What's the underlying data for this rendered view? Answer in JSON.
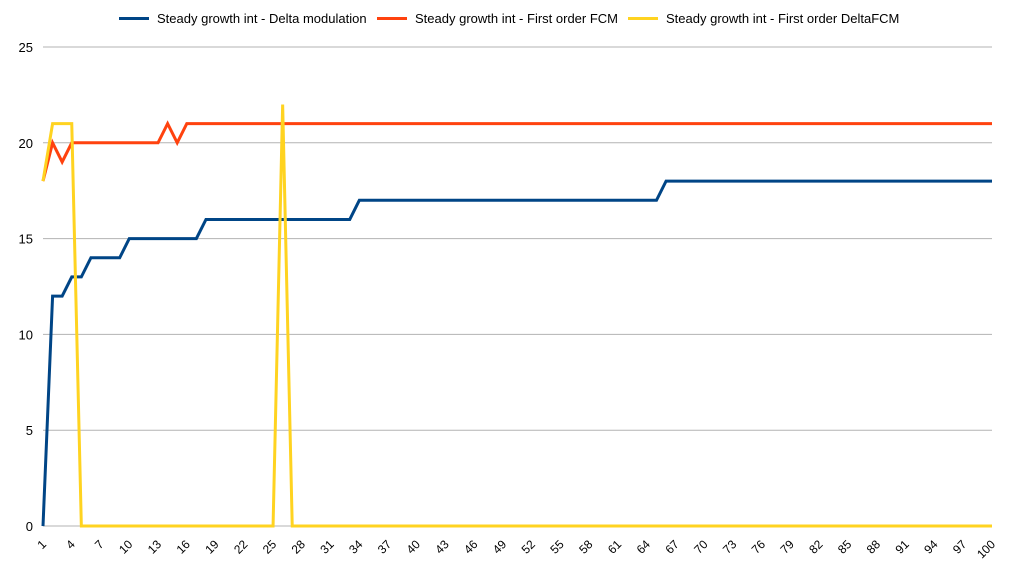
{
  "chart_data": {
    "type": "line",
    "title": "",
    "xlabel": "",
    "ylabel": "",
    "ylim": [
      0,
      25
    ],
    "yticks": [
      0,
      5,
      10,
      15,
      20,
      25
    ],
    "x_tick_labels": [
      "1",
      "4",
      "7",
      "10",
      "13",
      "16",
      "19",
      "22",
      "25",
      "28",
      "31",
      "34",
      "37",
      "40",
      "43",
      "46",
      "49",
      "52",
      "55",
      "58",
      "61",
      "64",
      "67",
      "70",
      "73",
      "76",
      "79",
      "82",
      "85",
      "88",
      "91",
      "94",
      "97",
      "100"
    ],
    "grid": "horizontal",
    "legend_position": "top",
    "series": [
      {
        "name": "Steady growth int - Delta modulation",
        "color": "#004586",
        "values": [
          0,
          12,
          12,
          13,
          13,
          14,
          14,
          14,
          14,
          15,
          15,
          15,
          15,
          15,
          15,
          15,
          15,
          16,
          16,
          16,
          16,
          16,
          16,
          16,
          16,
          16,
          16,
          16,
          16,
          16,
          16,
          16,
          16,
          17,
          17,
          17,
          17,
          17,
          17,
          17,
          17,
          17,
          17,
          17,
          17,
          17,
          17,
          17,
          17,
          17,
          17,
          17,
          17,
          17,
          17,
          17,
          17,
          17,
          17,
          17,
          17,
          17,
          17,
          17,
          17,
          18,
          18,
          18,
          18,
          18,
          18,
          18,
          18,
          18,
          18,
          18,
          18,
          18,
          18,
          18,
          18,
          18,
          18,
          18,
          18,
          18,
          18,
          18,
          18,
          18,
          18,
          18,
          18,
          18,
          18,
          18,
          18,
          18,
          18,
          18
        ]
      },
      {
        "name": "Steady growth int - First order FCM",
        "color": "#ff420e",
        "values": [
          18,
          20,
          19,
          20,
          20,
          20,
          20,
          20,
          20,
          20,
          20,
          20,
          20,
          21,
          20,
          21,
          21,
          21,
          21,
          21,
          21,
          21,
          21,
          21,
          21,
          21,
          21,
          21,
          21,
          21,
          21,
          21,
          21,
          21,
          21,
          21,
          21,
          21,
          21,
          21,
          21,
          21,
          21,
          21,
          21,
          21,
          21,
          21,
          21,
          21,
          21,
          21,
          21,
          21,
          21,
          21,
          21,
          21,
          21,
          21,
          21,
          21,
          21,
          21,
          21,
          21,
          21,
          21,
          21,
          21,
          21,
          21,
          21,
          21,
          21,
          21,
          21,
          21,
          21,
          21,
          21,
          21,
          21,
          21,
          21,
          21,
          21,
          21,
          21,
          21,
          21,
          21,
          21,
          21,
          21,
          21,
          21,
          21,
          21,
          21
        ]
      },
      {
        "name": "Steady growth int - First order DeltaFCM",
        "color": "#ffd320",
        "values": [
          18,
          21,
          21,
          21,
          0,
          0,
          0,
          0,
          0,
          0,
          0,
          0,
          0,
          0,
          0,
          0,
          0,
          0,
          0,
          0,
          0,
          0,
          0,
          0,
          0,
          22,
          0,
          0,
          0,
          0,
          0,
          0,
          0,
          0,
          0,
          0,
          0,
          0,
          0,
          0,
          0,
          0,
          0,
          0,
          0,
          0,
          0,
          0,
          0,
          0,
          0,
          0,
          0,
          0,
          0,
          0,
          0,
          0,
          0,
          0,
          0,
          0,
          0,
          0,
          0,
          0,
          0,
          0,
          0,
          0,
          0,
          0,
          0,
          0,
          0,
          0,
          0,
          0,
          0,
          0,
          0,
          0,
          0,
          0,
          0,
          0,
          0,
          0,
          0,
          0,
          0,
          0,
          0,
          0,
          0,
          0,
          0,
          0,
          0,
          0
        ]
      }
    ]
  }
}
